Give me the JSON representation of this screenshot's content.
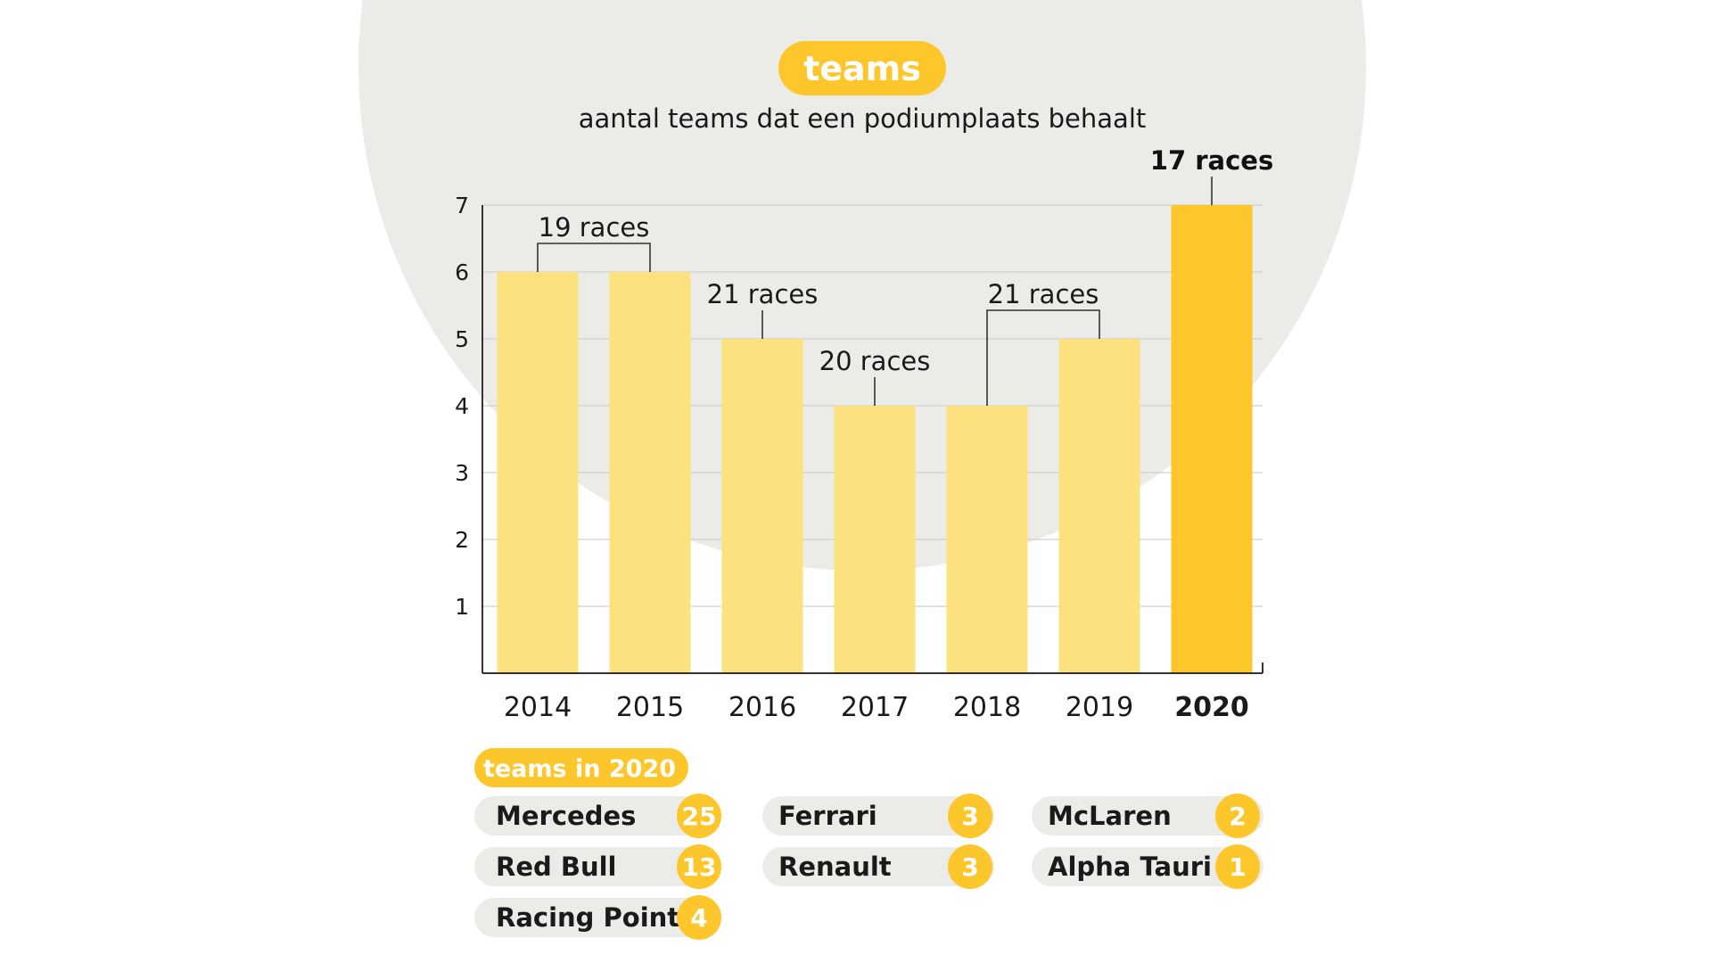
{
  "colors": {
    "bar": "#fde17f",
    "highlight": "#fdc62a",
    "pill": "#fdc62a",
    "backdrop": "#ebebe8",
    "grid": "#cfcfcf",
    "axis": "#333333",
    "text": "#1a1a1a"
  },
  "header": {
    "title": "teams",
    "subtitle": "aantal teams dat een podiumplaats behaalt"
  },
  "chart_data": {
    "type": "bar",
    "title": "teams",
    "subtitle": "aantal teams dat een podiumplaats behaalt",
    "categories": [
      "2014",
      "2015",
      "2016",
      "2017",
      "2018",
      "2019",
      "2020"
    ],
    "values": [
      6,
      6,
      5,
      4,
      4,
      5,
      7
    ],
    "highlight_category": "2020",
    "ylim": [
      0,
      7
    ],
    "yticks": [
      "1",
      "2",
      "3",
      "4",
      "5",
      "6",
      "7"
    ],
    "grid": true,
    "xlabel": "",
    "ylabel": "",
    "annotations": [
      {
        "text": "19 races",
        "covers": [
          "2014",
          "2015"
        ],
        "bold": false
      },
      {
        "text": "21 races",
        "covers": [
          "2016"
        ],
        "bold": false
      },
      {
        "text": "20 races",
        "covers": [
          "2017"
        ],
        "bold": false
      },
      {
        "text": "21 races",
        "covers": [
          "2018",
          "2019"
        ],
        "bold": false
      },
      {
        "text": "17 races",
        "covers": [
          "2020"
        ],
        "bold": true
      }
    ]
  },
  "legend": {
    "title": "teams in 2020",
    "teams": [
      {
        "name": "Mercedes",
        "count": "25"
      },
      {
        "name": "Red Bull",
        "count": "13"
      },
      {
        "name": "Racing Point",
        "count": "4"
      },
      {
        "name": "Ferrari",
        "count": "3"
      },
      {
        "name": "Renault",
        "count": "3"
      },
      {
        "name": "McLaren",
        "count": "2"
      },
      {
        "name": "Alpha Tauri",
        "count": "1"
      }
    ]
  }
}
